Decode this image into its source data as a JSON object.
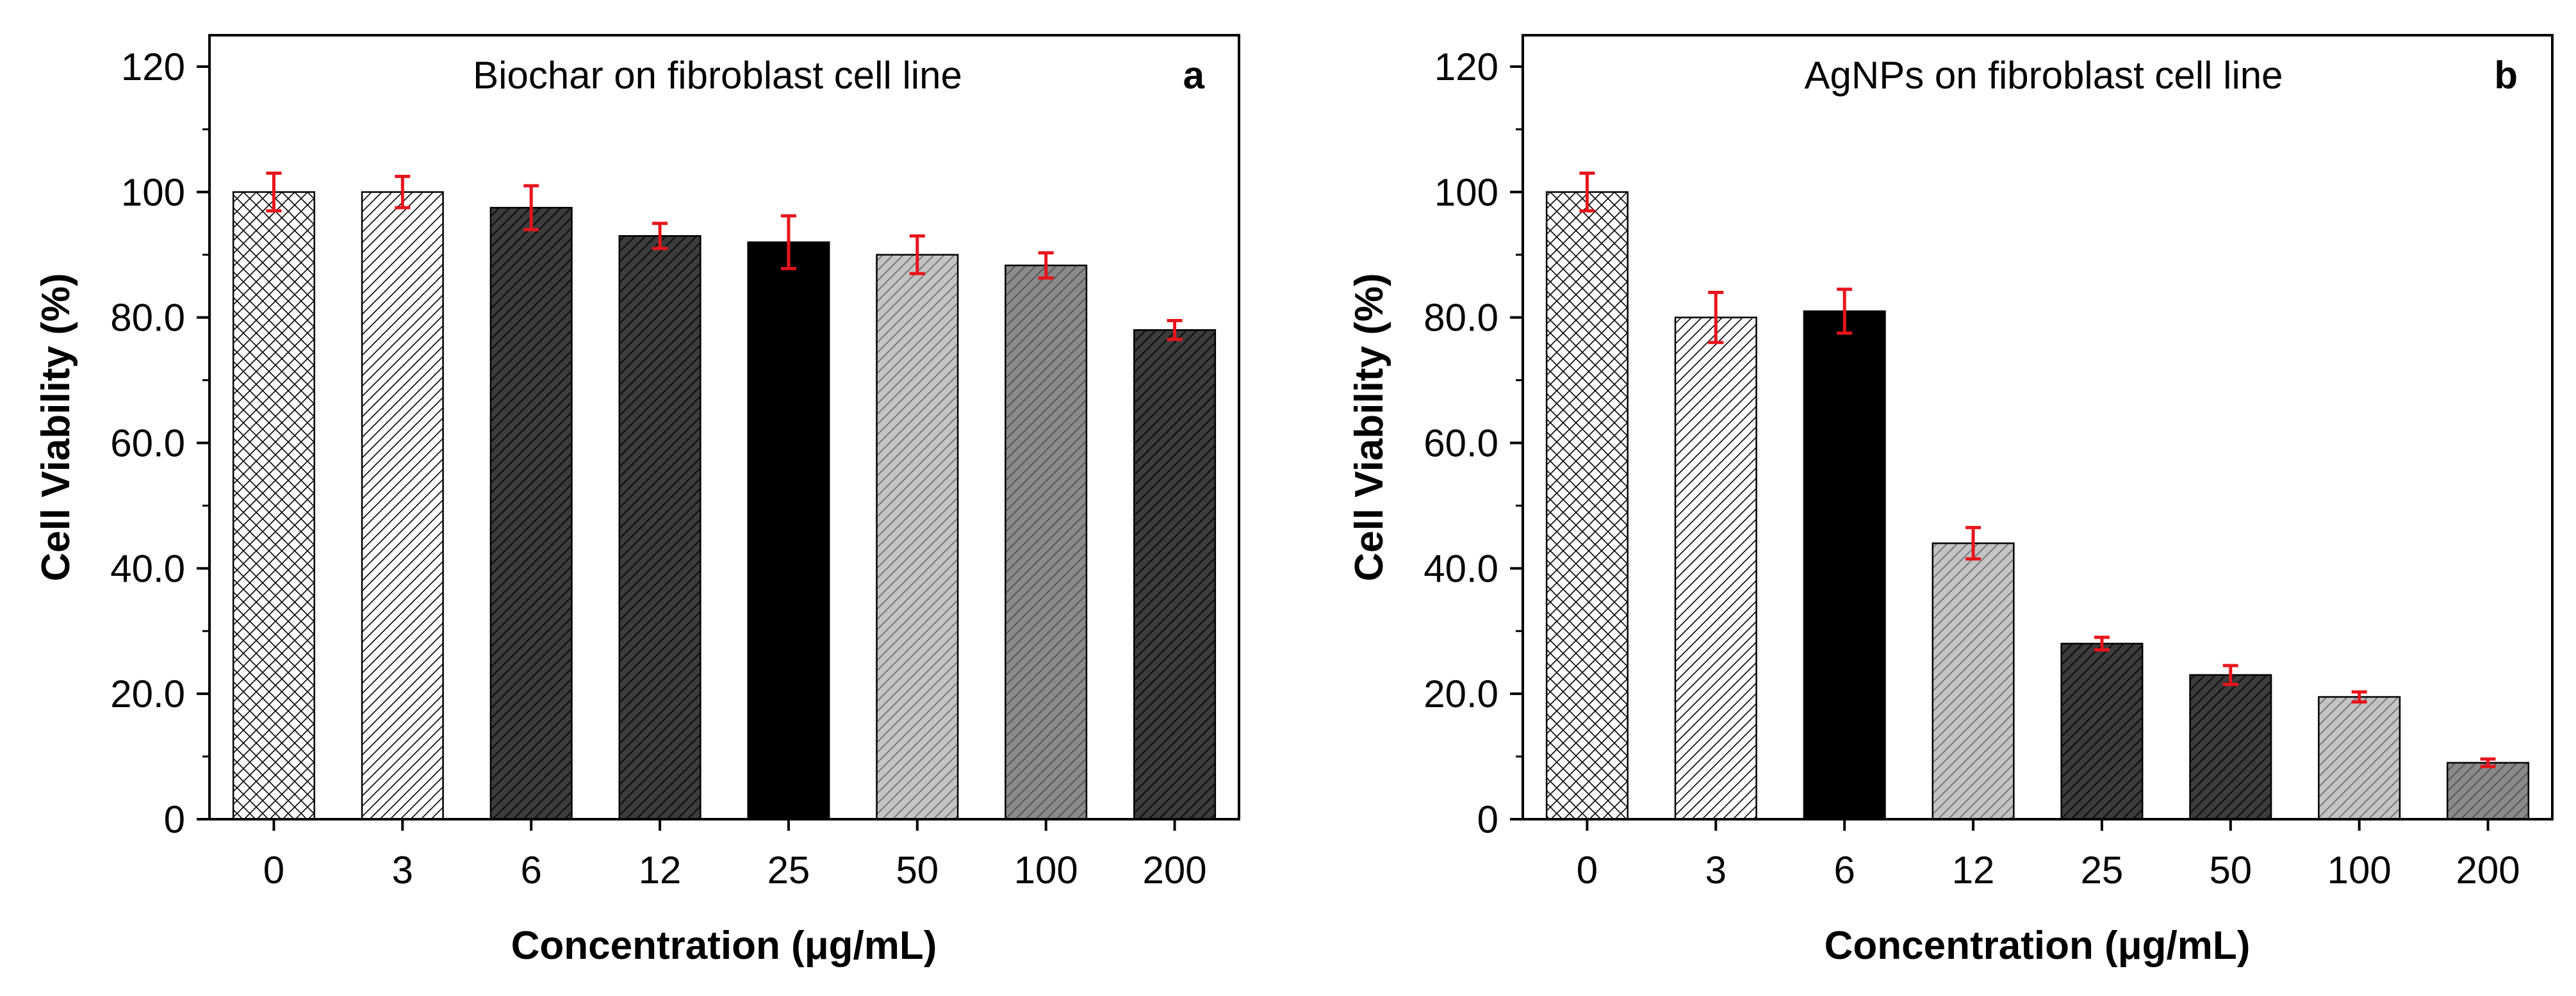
{
  "chart_data": [
    {
      "type": "bar",
      "panel": "a",
      "title": "Biochar on fibroblast cell line",
      "xlabel": "Concentration (μg/mL)",
      "ylabel": "Cell Viability (%)",
      "categories": [
        "0",
        "3",
        "6",
        "12",
        "25",
        "50",
        "100",
        "200"
      ],
      "values": [
        100,
        100,
        97.5,
        93,
        92,
        90,
        88.3,
        78
      ],
      "errors": [
        3,
        2.5,
        3.5,
        2,
        4.2,
        3,
        2,
        1.5
      ],
      "ylim": [
        0,
        125
      ],
      "yticks": [
        0,
        20,
        40,
        60,
        80,
        100,
        120
      ],
      "ytick_labels": [
        "0",
        "20.0",
        "40.0",
        "60.0",
        "80.0",
        "100",
        "120"
      ],
      "bar_styles": [
        "crosshatch",
        "light-hatch",
        "dark-hatch",
        "dark-hatch",
        "solid-black",
        "gray-hatch",
        "mid-gray-hatch",
        "dark-hatch"
      ],
      "legend": "none",
      "grid": false
    },
    {
      "type": "bar",
      "panel": "b",
      "title": "AgNPs on fibroblast cell line",
      "xlabel": "Concentration (μg/mL)",
      "ylabel": "Cell Viability (%)",
      "categories": [
        "0",
        "3",
        "6",
        "12",
        "25",
        "50",
        "100",
        "200"
      ],
      "values": [
        100,
        80,
        81,
        44,
        28,
        23,
        19.5,
        9
      ],
      "errors": [
        3,
        4,
        3.5,
        2.5,
        1,
        1.5,
        0.8,
        0.6
      ],
      "ylim": [
        0,
        125
      ],
      "yticks": [
        0,
        20,
        40,
        60,
        80,
        100,
        120
      ],
      "ytick_labels": [
        "0",
        "20.0",
        "40.0",
        "60.0",
        "80.0",
        "100",
        "120"
      ],
      "bar_styles": [
        "crosshatch",
        "light-hatch",
        "solid-black",
        "gray-hatch",
        "dark-hatch",
        "dark-hatch",
        "gray-hatch",
        "mid-gray-hatch"
      ],
      "legend": "none",
      "grid": false
    }
  ],
  "colors": {
    "error_bar": "#e8141b",
    "axis": "#000000",
    "dark_bar": "#3c3c3c",
    "gray_bar": "#c4c4c4",
    "mid_gray_bar": "#8a8a8a",
    "black_bar": "#000000",
    "white_bar": "#ffffff"
  }
}
